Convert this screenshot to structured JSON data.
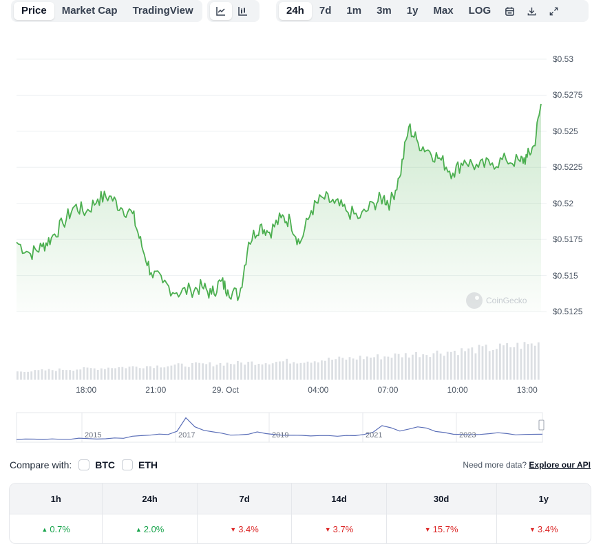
{
  "toolbar": {
    "tabs": [
      {
        "label": "Price",
        "active": true
      },
      {
        "label": "Market Cap",
        "active": false
      },
      {
        "label": "TradingView",
        "active": false
      }
    ],
    "chart_types": [
      {
        "icon": "line-chart-icon",
        "active": true
      },
      {
        "icon": "candlestick-chart-icon",
        "active": false
      }
    ],
    "ranges": [
      {
        "label": "24h",
        "active": true
      },
      {
        "label": "7d",
        "active": false
      },
      {
        "label": "1m",
        "active": false
      },
      {
        "label": "3m",
        "active": false
      },
      {
        "label": "1y",
        "active": false
      },
      {
        "label": "Max",
        "active": false
      },
      {
        "label": "LOG",
        "active": false
      }
    ],
    "actions": [
      "calendar-icon",
      "download-icon",
      "expand-icon"
    ]
  },
  "watermark": "CoinGecko",
  "chart_data": {
    "type": "area",
    "line_color": "#4caf50",
    "y_ticks": [
      {
        "value": 0.53,
        "label": "$0.53"
      },
      {
        "value": 0.5275,
        "label": "$0.5275"
      },
      {
        "value": 0.525,
        "label": "$0.525"
      },
      {
        "value": 0.5225,
        "label": "$0.5225"
      },
      {
        "value": 0.52,
        "label": "$0.52"
      },
      {
        "value": 0.5175,
        "label": "$0.5175"
      },
      {
        "value": 0.515,
        "label": "$0.515"
      },
      {
        "value": 0.5125,
        "label": "$0.5125"
      }
    ],
    "ylim": [
      0.5125,
      0.53
    ],
    "x_range_hours": [
      15.0,
      37.6
    ],
    "x_ticks": [
      {
        "hour": 18,
        "label": "18:00"
      },
      {
        "hour": 21,
        "label": "21:00"
      },
      {
        "hour": 24,
        "label": "29. Oct"
      },
      {
        "hour": 28,
        "label": "04:00"
      },
      {
        "hour": 31,
        "label": "07:00"
      },
      {
        "hour": 34,
        "label": "10:00"
      },
      {
        "hour": 37,
        "label": "13:00"
      }
    ],
    "series": [
      {
        "x": [
          15.0,
          15.6,
          16.1,
          16.5,
          17.0,
          17.5,
          18.0,
          18.5,
          19.0,
          19.5,
          20.0,
          20.4,
          20.8,
          21.3,
          21.9,
          22.5,
          23.0,
          23.4,
          23.8,
          24.1,
          24.6,
          25.0,
          25.5,
          25.9,
          26.4,
          26.8,
          27.2,
          27.7,
          28.2,
          28.7,
          29.2,
          29.8,
          30.4,
          30.8,
          31.1,
          31.5,
          31.9,
          32.3,
          32.8,
          33.3,
          33.8,
          34.3,
          34.9,
          35.5,
          36.1,
          36.7,
          37.0,
          37.3,
          37.6
        ],
        "y": [
          0.5173,
          0.5165,
          0.517,
          0.5176,
          0.5186,
          0.5198,
          0.5194,
          0.5203,
          0.5205,
          0.5197,
          0.5193,
          0.517,
          0.5152,
          0.5145,
          0.5138,
          0.514,
          0.5142,
          0.5137,
          0.5146,
          0.514,
          0.5136,
          0.5173,
          0.5185,
          0.518,
          0.519,
          0.5188,
          0.5172,
          0.5195,
          0.5204,
          0.52,
          0.5195,
          0.519,
          0.52,
          0.5204,
          0.52,
          0.5218,
          0.5253,
          0.5242,
          0.5236,
          0.523,
          0.5221,
          0.523,
          0.5225,
          0.5228,
          0.523,
          0.5229,
          0.5232,
          0.524,
          0.5269
        ]
      }
    ],
    "volume": [
      0.2,
      0.22,
      0.21,
      0.23,
      0.24,
      0.25,
      0.26,
      0.26,
      0.27,
      0.28,
      0.28,
      0.3,
      0.31,
      0.31,
      0.32,
      0.33,
      0.34,
      0.34,
      0.35,
      0.36,
      0.36,
      0.37,
      0.38,
      0.38,
      0.39,
      0.4,
      0.41,
      0.41,
      0.42,
      0.43,
      0.43,
      0.44,
      0.45,
      0.46,
      0.46,
      0.47,
      0.48,
      0.49,
      0.5,
      0.51,
      0.52,
      0.53,
      0.55,
      0.56,
      0.57,
      0.58,
      0.6,
      0.61,
      0.63,
      0.64,
      0.66,
      0.67,
      0.69,
      0.7,
      0.72,
      0.73,
      0.75,
      0.77,
      0.78,
      0.8,
      0.82,
      0.84,
      0.86,
      0.88,
      0.9
    ]
  },
  "navigator": {
    "year_labels": [
      "2015",
      "2017",
      "2019",
      "2021",
      "2023"
    ],
    "history": [
      0.02,
      0.02,
      0.02,
      0.02,
      0.02,
      0.02,
      0.03,
      0.03,
      0.03,
      0.03,
      0.04,
      0.04,
      0.06,
      0.12,
      0.15,
      0.18,
      0.2,
      0.22,
      0.35,
      0.9,
      0.5,
      0.35,
      0.3,
      0.28,
      0.2,
      0.2,
      0.22,
      0.28,
      0.26,
      0.22,
      0.18,
      0.17,
      0.16,
      0.16,
      0.17,
      0.16,
      0.15,
      0.16,
      0.18,
      0.2,
      0.28,
      0.55,
      0.45,
      0.35,
      0.4,
      0.5,
      0.45,
      0.35,
      0.3,
      0.22,
      0.2,
      0.18,
      0.2,
      0.22,
      0.25,
      0.22,
      0.2,
      0.22,
      0.2,
      0.22
    ]
  },
  "compare": {
    "label": "Compare with:",
    "options": [
      "BTC",
      "ETH"
    ],
    "need_more_text": "Need more data?",
    "api_link": "Explore our API"
  },
  "performance": {
    "columns": [
      "1h",
      "24h",
      "7d",
      "14d",
      "30d",
      "1y"
    ],
    "values": [
      {
        "text": "0.7%",
        "direction": "up"
      },
      {
        "text": "2.0%",
        "direction": "up"
      },
      {
        "text": "3.4%",
        "direction": "down"
      },
      {
        "text": "3.7%",
        "direction": "down"
      },
      {
        "text": "15.7%",
        "direction": "down"
      },
      {
        "text": "3.4%",
        "direction": "down"
      }
    ]
  }
}
